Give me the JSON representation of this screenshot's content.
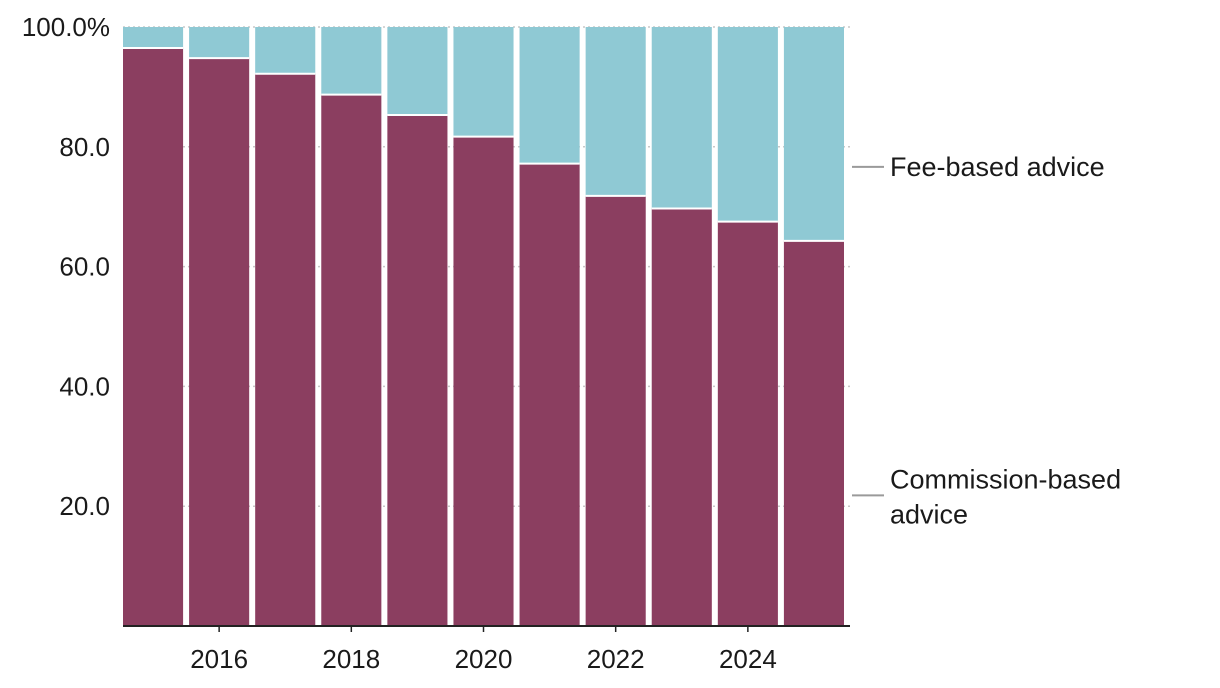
{
  "chart_data": {
    "type": "bar",
    "stacked": true,
    "title": "",
    "xlabel": "",
    "ylabel": "",
    "ylim": [
      0,
      100
    ],
    "categories": [
      "2015",
      "2016",
      "2017",
      "2018",
      "2019",
      "2020",
      "2021",
      "2022",
      "2023",
      "2024",
      "2025"
    ],
    "x_tick_labels": [
      "2016",
      "2018",
      "2020",
      "2022",
      "2024"
    ],
    "y_ticks": [
      {
        "value": 100,
        "label": "100.0%"
      },
      {
        "value": 80,
        "label": "80.0"
      },
      {
        "value": 60,
        "label": "60.0"
      },
      {
        "value": 40,
        "label": "40.0"
      },
      {
        "value": 20,
        "label": "20.0"
      }
    ],
    "grid": true,
    "legend_placement": "right",
    "series": [
      {
        "name": "Commission-based advice",
        "label_lines": [
          "Commission-based",
          "advice"
        ],
        "color": "#8b3e60",
        "values": [
          96.5,
          94.8,
          92.2,
          88.7,
          85.3,
          81.7,
          77.2,
          71.8,
          69.7,
          67.5,
          64.3
        ]
      },
      {
        "name": "Fee-based advice",
        "label_lines": [
          "Fee-based advice"
        ],
        "color": "#8fc9d4",
        "values": [
          3.5,
          5.2,
          7.8,
          11.3,
          14.7,
          18.3,
          22.8,
          28.2,
          30.3,
          32.5,
          35.7
        ]
      }
    ]
  }
}
